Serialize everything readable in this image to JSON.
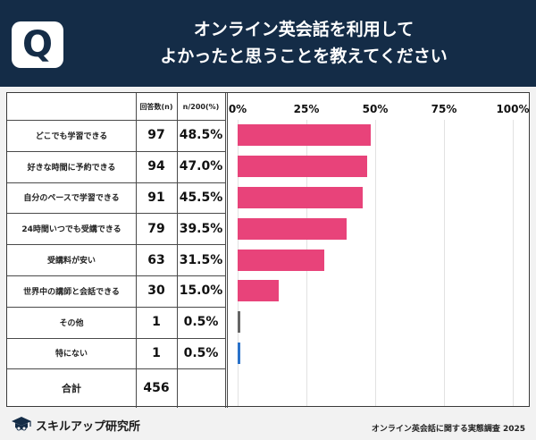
{
  "header": {
    "badge": "Q",
    "title_line1": "オンライン英会話を利用して",
    "title_line2": "よかったと思うことを教えてください"
  },
  "table": {
    "col_count_header": "回答数(n)",
    "col_pct_header": "n/200(%)",
    "total_label": "合計",
    "total_value": "456"
  },
  "chart_data": {
    "type": "bar",
    "orientation": "horizontal",
    "categories": [
      "どこでも学習できる",
      "好きな時間に予約できる",
      "自分のペースで学習できる",
      "24時間いつでも受講できる",
      "受講料が安い",
      "世界中の講師と会話できる",
      "その他",
      "特にない"
    ],
    "counts": [
      97,
      94,
      91,
      79,
      63,
      30,
      1,
      1
    ],
    "count_labels": [
      "97",
      "94",
      "91",
      "79",
      "63",
      "30",
      "1",
      "1"
    ],
    "values": [
      48.5,
      47.0,
      45.5,
      39.5,
      31.5,
      15.0,
      0.5,
      0.5
    ],
    "value_labels": [
      "48.5%",
      "47.0%",
      "45.5%",
      "39.5%",
      "31.5%",
      "15.0%",
      "0.5%",
      "0.5%"
    ],
    "xlim": [
      0,
      100
    ],
    "ticks": [
      "0%",
      "25%",
      "50%",
      "75%",
      "100%"
    ],
    "tick_values": [
      0,
      25,
      50,
      75,
      100
    ],
    "bar_colors": [
      "#e8437a",
      "#e8437a",
      "#e8437a",
      "#e8437a",
      "#e8437a",
      "#e8437a",
      "#666666",
      "#2a72c9"
    ],
    "grid": true
  },
  "footer": {
    "logo_text": "スキルアップ研究所",
    "source": "オンライン英会話に関する実態調査 2025"
  },
  "colors": {
    "header_bg": "#142c47",
    "bar_main": "#e8437a"
  }
}
